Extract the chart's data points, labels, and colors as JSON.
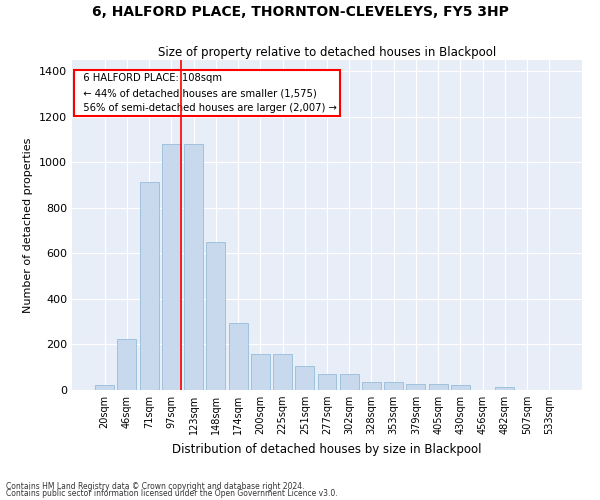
{
  "title": "6, HALFORD PLACE, THORNTON-CLEVELEYS, FY5 3HP",
  "subtitle": "Size of property relative to detached houses in Blackpool",
  "xlabel": "Distribution of detached houses by size in Blackpool",
  "ylabel": "Number of detached properties",
  "bar_color": "#c9d9ed",
  "bar_edge_color": "#8ab4d4",
  "categories": [
    "20sqm",
    "46sqm",
    "71sqm",
    "97sqm",
    "123sqm",
    "148sqm",
    "174sqm",
    "200sqm",
    "225sqm",
    "251sqm",
    "277sqm",
    "302sqm",
    "328sqm",
    "353sqm",
    "379sqm",
    "405sqm",
    "430sqm",
    "456sqm",
    "482sqm",
    "507sqm",
    "533sqm"
  ],
  "values": [
    20,
    225,
    915,
    1080,
    1080,
    650,
    295,
    160,
    160,
    105,
    70,
    70,
    35,
    35,
    25,
    25,
    20,
    0,
    15,
    0,
    0
  ],
  "property_label": "6 HALFORD PLACE: 108sqm",
  "pct_smaller": 44,
  "n_smaller": 1575,
  "pct_larger": 56,
  "n_larger": 2007,
  "background_color": "#e8eef8",
  "grid_color": "#ffffff",
  "footnote1": "Contains HM Land Registry data © Crown copyright and database right 2024.",
  "footnote2": "Contains public sector information licensed under the Open Government Licence v3.0.",
  "ylim": [
    0,
    1450
  ],
  "yticks": [
    0,
    200,
    400,
    600,
    800,
    1000,
    1200,
    1400
  ]
}
